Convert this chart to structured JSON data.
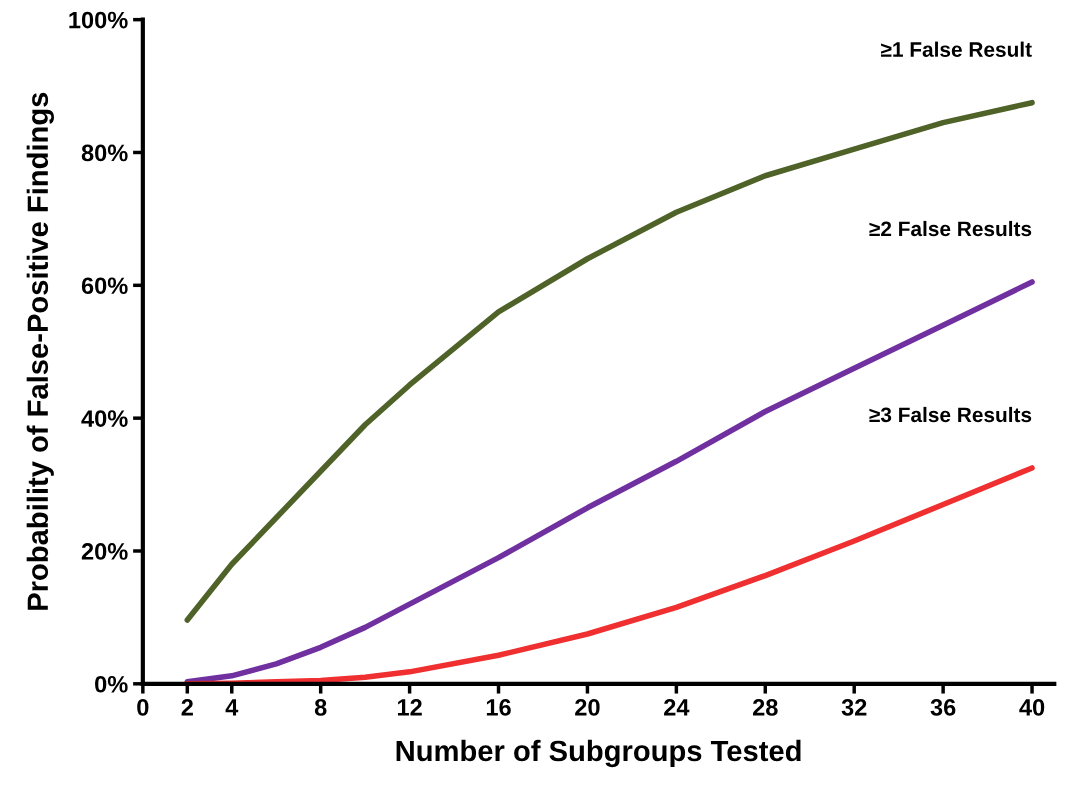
{
  "chart_data": {
    "type": "line",
    "xlabel": "Number of Subgroups Tested",
    "ylabel": "Probability of False-Positive Findings",
    "x": [
      2,
      4,
      6,
      8,
      10,
      12,
      16,
      20,
      24,
      28,
      32,
      36,
      40
    ],
    "series": [
      {
        "name": "≥1 False Result",
        "color": "#4f6228",
        "values": [
          9.6,
          18,
          25,
          32,
          39,
          45,
          56,
          64,
          71,
          76.5,
          80.5,
          84.5,
          87.5
        ]
      },
      {
        "name": "≥2 False Results",
        "color": "#7030a0",
        "values": [
          0.3,
          1.2,
          3,
          5.5,
          8.5,
          12,
          19,
          26.5,
          33.5,
          41,
          47.5,
          54,
          60.5
        ]
      },
      {
        "name": "≥3 False Results",
        "color": "#f03030",
        "values": [
          0,
          0.1,
          0.3,
          0.5,
          1,
          1.8,
          4.3,
          7.5,
          11.5,
          16.3,
          21.5,
          27,
          32.5
        ]
      }
    ],
    "xlim": [
      0,
      41
    ],
    "xticks": [
      0,
      2,
      4,
      8,
      12,
      16,
      20,
      24,
      28,
      32,
      36,
      40
    ],
    "ylim": [
      0,
      100
    ],
    "yticks": [
      {
        "value": 0,
        "label": "0%"
      },
      {
        "value": 20,
        "label": "20%"
      },
      {
        "value": 40,
        "label": "40%"
      },
      {
        "value": 60,
        "label": "60%"
      },
      {
        "value": 80,
        "label": "80%"
      },
      {
        "value": 100,
        "label": "100%"
      }
    ],
    "grid": false,
    "legend": false,
    "marker": "none",
    "line_style": "solid"
  }
}
